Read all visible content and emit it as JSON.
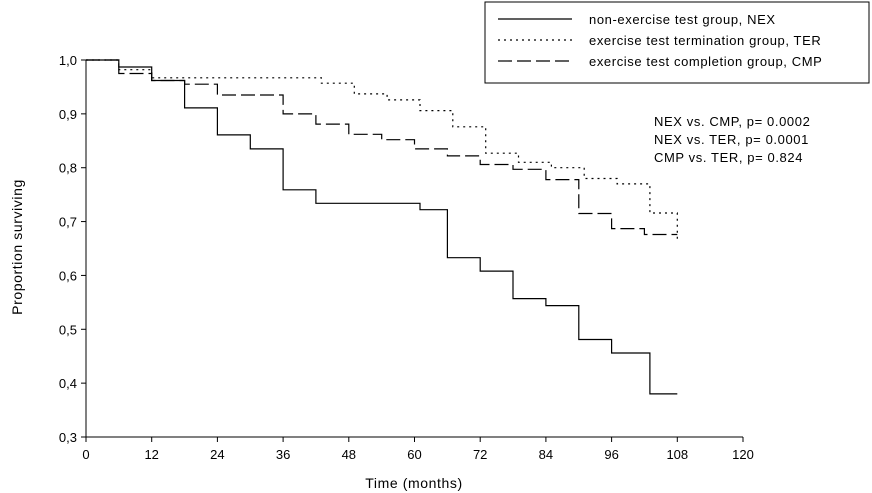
{
  "chart_data": {
    "type": "line",
    "step": true,
    "title": "",
    "xlabel": "Time (months)",
    "ylabel": "Proportion surviving",
    "xlim": [
      0,
      120
    ],
    "ylim": [
      0.3,
      1.0
    ],
    "xticks": [
      0,
      12,
      24,
      36,
      48,
      60,
      72,
      84,
      96,
      108,
      120
    ],
    "xtick_labels": [
      "0",
      "12",
      "24",
      "36",
      "48",
      "60",
      "72",
      "84",
      "96",
      "108",
      "120"
    ],
    "yticks": [
      0.3,
      0.4,
      0.5,
      0.6,
      0.7,
      0.8,
      0.9,
      1.0
    ],
    "ytick_labels": [
      "0,3",
      "0,4",
      "0,5",
      "0,6",
      "0,7",
      "0,8",
      "0,9",
      "1,0"
    ],
    "grid": false,
    "legend_position": "top-right",
    "series": [
      {
        "name": "non-exercise test group, NEX",
        "style": "solid",
        "points": [
          [
            0,
            1.0
          ],
          [
            6,
            1.0
          ],
          [
            6,
            0.987
          ],
          [
            12,
            0.987
          ],
          [
            12,
            0.962
          ],
          [
            18,
            0.962
          ],
          [
            18,
            0.911
          ],
          [
            24,
            0.911
          ],
          [
            24,
            0.861
          ],
          [
            30,
            0.861
          ],
          [
            30,
            0.835
          ],
          [
            36,
            0.835
          ],
          [
            36,
            0.759
          ],
          [
            42,
            0.759
          ],
          [
            42,
            0.734
          ],
          [
            61,
            0.734
          ],
          [
            61,
            0.722
          ],
          [
            66,
            0.722
          ],
          [
            66,
            0.633
          ],
          [
            72,
            0.633
          ],
          [
            72,
            0.608
          ],
          [
            78,
            0.608
          ],
          [
            78,
            0.557
          ],
          [
            84,
            0.557
          ],
          [
            84,
            0.544
          ],
          [
            90,
            0.544
          ],
          [
            90,
            0.481
          ],
          [
            96,
            0.481
          ],
          [
            96,
            0.456
          ],
          [
            103,
            0.456
          ],
          [
            103,
            0.38
          ],
          [
            108,
            0.38
          ]
        ]
      },
      {
        "name": "exercise test termination group, TER",
        "style": "dotted",
        "points": [
          [
            0,
            1.0
          ],
          [
            6,
            1.0
          ],
          [
            6,
            0.982
          ],
          [
            12,
            0.982
          ],
          [
            12,
            0.967
          ],
          [
            24,
            0.967
          ],
          [
            24,
            0.967
          ],
          [
            43,
            0.967
          ],
          [
            43,
            0.957
          ],
          [
            49,
            0.957
          ],
          [
            49,
            0.937
          ],
          [
            55,
            0.937
          ],
          [
            55,
            0.926
          ],
          [
            61,
            0.926
          ],
          [
            61,
            0.906
          ],
          [
            67,
            0.906
          ],
          [
            67,
            0.876
          ],
          [
            73,
            0.876
          ],
          [
            73,
            0.827
          ],
          [
            79,
            0.827
          ],
          [
            79,
            0.81
          ],
          [
            85,
            0.81
          ],
          [
            85,
            0.8
          ],
          [
            91,
            0.8
          ],
          [
            91,
            0.78
          ],
          [
            97,
            0.78
          ],
          [
            97,
            0.77
          ],
          [
            103,
            0.77
          ],
          [
            103,
            0.716
          ],
          [
            108,
            0.716
          ],
          [
            108,
            0.694
          ],
          [
            108,
            0.667
          ]
        ]
      },
      {
        "name": "exercise test completion group, CMP",
        "style": "dashed",
        "points": [
          [
            0,
            1.0
          ],
          [
            6,
            1.0
          ],
          [
            6,
            0.975
          ],
          [
            12,
            0.975
          ],
          [
            12,
            0.962
          ],
          [
            18,
            0.962
          ],
          [
            18,
            0.955
          ],
          [
            24,
            0.955
          ],
          [
            24,
            0.935
          ],
          [
            36,
            0.935
          ],
          [
            36,
            0.9
          ],
          [
            42,
            0.9
          ],
          [
            42,
            0.881
          ],
          [
            48,
            0.881
          ],
          [
            48,
            0.862
          ],
          [
            54,
            0.862
          ],
          [
            54,
            0.852
          ],
          [
            60,
            0.852
          ],
          [
            60,
            0.835
          ],
          [
            66,
            0.835
          ],
          [
            66,
            0.822
          ],
          [
            72,
            0.822
          ],
          [
            72,
            0.806
          ],
          [
            78,
            0.806
          ],
          [
            78,
            0.797
          ],
          [
            84,
            0.797
          ],
          [
            84,
            0.778
          ],
          [
            90,
            0.778
          ],
          [
            90,
            0.715
          ],
          [
            96,
            0.715
          ],
          [
            96,
            0.687
          ],
          [
            102,
            0.687
          ],
          [
            102,
            0.676
          ],
          [
            108,
            0.676
          ]
        ]
      }
    ],
    "annotations": [
      "NEX vs. CMP, p= 0.0002",
      "NEX vs. TER, p= 0.0001",
      "CMP vs. TER, p= 0.824"
    ]
  }
}
